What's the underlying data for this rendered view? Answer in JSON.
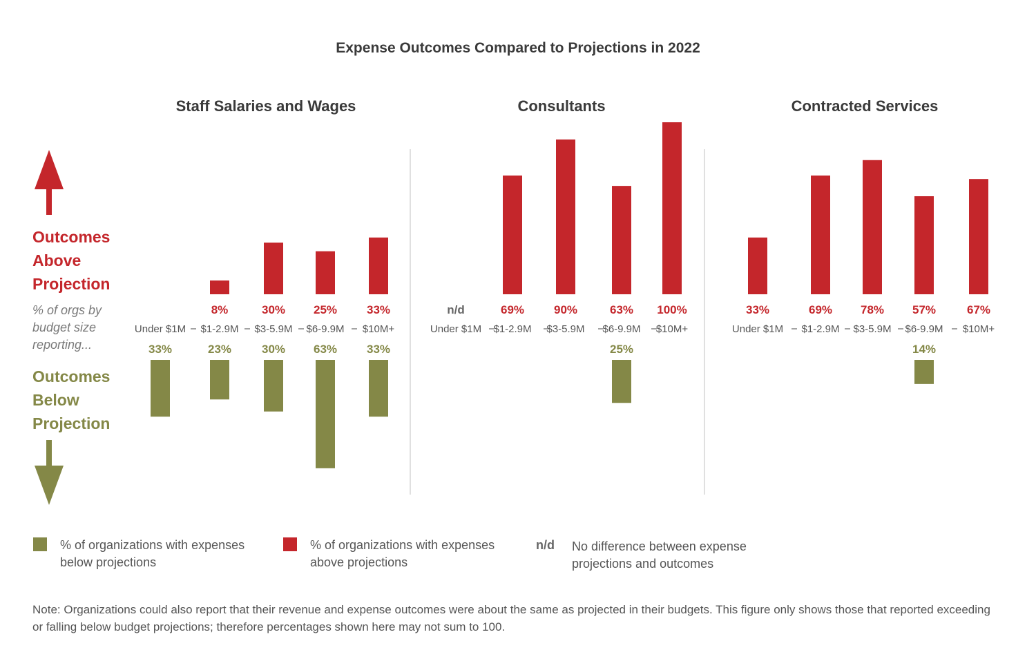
{
  "title": "Expense Outcomes Compared to Projections in 2022",
  "side": {
    "above_label": [
      "Outcomes",
      "Above",
      "Projection"
    ],
    "note": [
      "% of orgs by",
      "budget size",
      "reporting..."
    ],
    "below_label": [
      "Outcomes",
      "Below",
      "Projection"
    ]
  },
  "colors": {
    "above": "#c4262b",
    "below": "#848847",
    "divider": "#d5d5d5",
    "arrow_up": "#c4262b",
    "arrow_down": "#848847"
  },
  "legend": {
    "below_text": [
      "% of organizations with expenses",
      "below projections"
    ],
    "above_text": [
      "% of organizations with expenses",
      "above projections"
    ],
    "nd_marker": "n/d",
    "nd_text": [
      "No difference between expense",
      "projections and outcomes"
    ]
  },
  "note": "Note: Organizations could also report that their revenue and expense outcomes were about the same as projected in their budgets. This figure only shows those that reported exceeding or falling below budget projections; therefore percentages shown here may not sum to 100.",
  "chart_data": [
    {
      "type": "bar",
      "title": "Staff Salaries and Wages",
      "categories": [
        "Under $1M",
        "$1-2.9M",
        "$3-5.9M",
        "$6-9.9M",
        "$10M+"
      ],
      "series": [
        {
          "name": "% of organizations with expenses above projections",
          "values": [
            null,
            8,
            30,
            25,
            33
          ],
          "labels": [
            "",
            "8%",
            "30%",
            "25%",
            "33%"
          ]
        },
        {
          "name": "% of organizations with expenses below projections",
          "values": [
            33,
            23,
            30,
            63,
            33
          ],
          "labels": [
            "33%",
            "23%",
            "30%",
            "63%",
            "33%"
          ]
        }
      ]
    },
    {
      "type": "bar",
      "title": "Consultants",
      "categories": [
        "Under $1M",
        "$1-2.9M",
        "$3-5.9M",
        "$6-9.9M",
        "$10M+"
      ],
      "series": [
        {
          "name": "% of organizations with expenses above projections",
          "values": [
            null,
            69,
            90,
            63,
            100
          ],
          "labels": [
            "n/d",
            "69%",
            "90%",
            "63%",
            "100%"
          ]
        },
        {
          "name": "% of organizations with expenses below projections",
          "values": [
            null,
            null,
            null,
            25,
            null
          ],
          "labels": [
            "",
            "",
            "",
            "25%",
            ""
          ]
        }
      ]
    },
    {
      "type": "bar",
      "title": "Contracted Services",
      "categories": [
        "Under $1M",
        "$1-2.9M",
        "$3-5.9M",
        "$6-9.9M",
        "$10M+"
      ],
      "series": [
        {
          "name": "% of organizations with expenses above projections",
          "values": [
            33,
            69,
            78,
            57,
            67
          ],
          "labels": [
            "33%",
            "69%",
            "78%",
            "57%",
            "67%"
          ]
        },
        {
          "name": "% of organizations with expenses below projections",
          "values": [
            null,
            null,
            null,
            14,
            null
          ],
          "labels": [
            "",
            "",
            "",
            "14%",
            ""
          ]
        }
      ]
    }
  ]
}
